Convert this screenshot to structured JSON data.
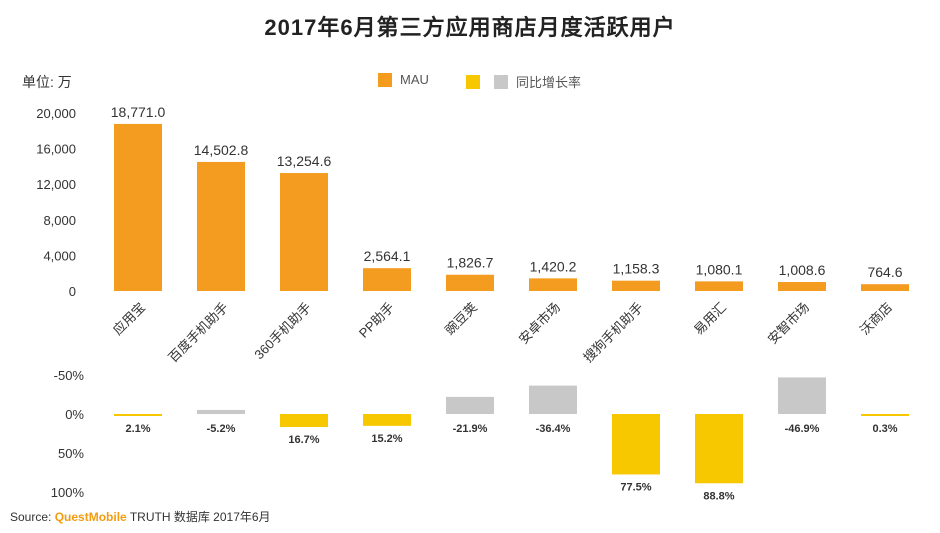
{
  "title": "2017年6月第三方应用商店月度活跃用户",
  "unit_label": "单位: 万",
  "legend": {
    "mau": "MAU",
    "growth": "同比增长率"
  },
  "colors": {
    "mau": "#f39c1f",
    "growth_positive": "#f7c800",
    "growth_negative": "#c8c8c8"
  },
  "source": {
    "prefix": "Source:",
    "brand": "QuestMobile",
    "rest": "TRUTH 数据库 2017年6月"
  },
  "chart_data": [
    {
      "type": "bar",
      "categories": [
        "应用宝",
        "百度手机助手",
        "360手机助手",
        "PP助手",
        "豌豆荚",
        "安卓市场",
        "搜狗手机助手",
        "易用汇",
        "安智市场",
        "沃商店"
      ],
      "series": [
        {
          "name": "MAU",
          "values": [
            18771.0,
            14502.8,
            13254.6,
            2564.1,
            1826.7,
            1420.2,
            1158.3,
            1080.1,
            1008.6,
            764.6
          ]
        }
      ],
      "data_labels": [
        "18,771.0",
        "14,502.8",
        "13,254.6",
        "2,564.1",
        "1,826.7",
        "1,420.2",
        "1,158.3",
        "1,080.1",
        "1,008.6",
        "764.6"
      ],
      "ylim": [
        0,
        20000
      ],
      "yticks": [
        "20,000",
        "16,000",
        "12,000",
        "8,000",
        "4,000",
        "0"
      ],
      "ytick_values": [
        20000,
        16000,
        12000,
        8000,
        4000,
        0
      ]
    },
    {
      "type": "bar",
      "categories": [
        "应用宝",
        "百度手机助手",
        "360手机助手",
        "PP助手",
        "豌豆荚",
        "安卓市场",
        "搜狗手机助手",
        "易用汇",
        "安智市场",
        "沃商店"
      ],
      "series": [
        {
          "name": "同比增长率",
          "values": [
            2.1,
            -5.2,
            16.7,
            15.2,
            -21.9,
            -36.4,
            77.5,
            88.8,
            -46.9,
            0.3
          ]
        }
      ],
      "data_labels": [
        "2.1%",
        "-5.2%",
        "16.7%",
        "15.2%",
        "-21.9%",
        "-36.4%",
        "77.5%",
        "88.8%",
        "-46.9%",
        "0.3%"
      ],
      "y_axis_inverted": true,
      "ylim": [
        -50,
        100
      ],
      "yticks": [
        "-50%",
        "0%",
        "50%",
        "100%"
      ],
      "ytick_values": [
        -50,
        0,
        50,
        100
      ]
    }
  ]
}
